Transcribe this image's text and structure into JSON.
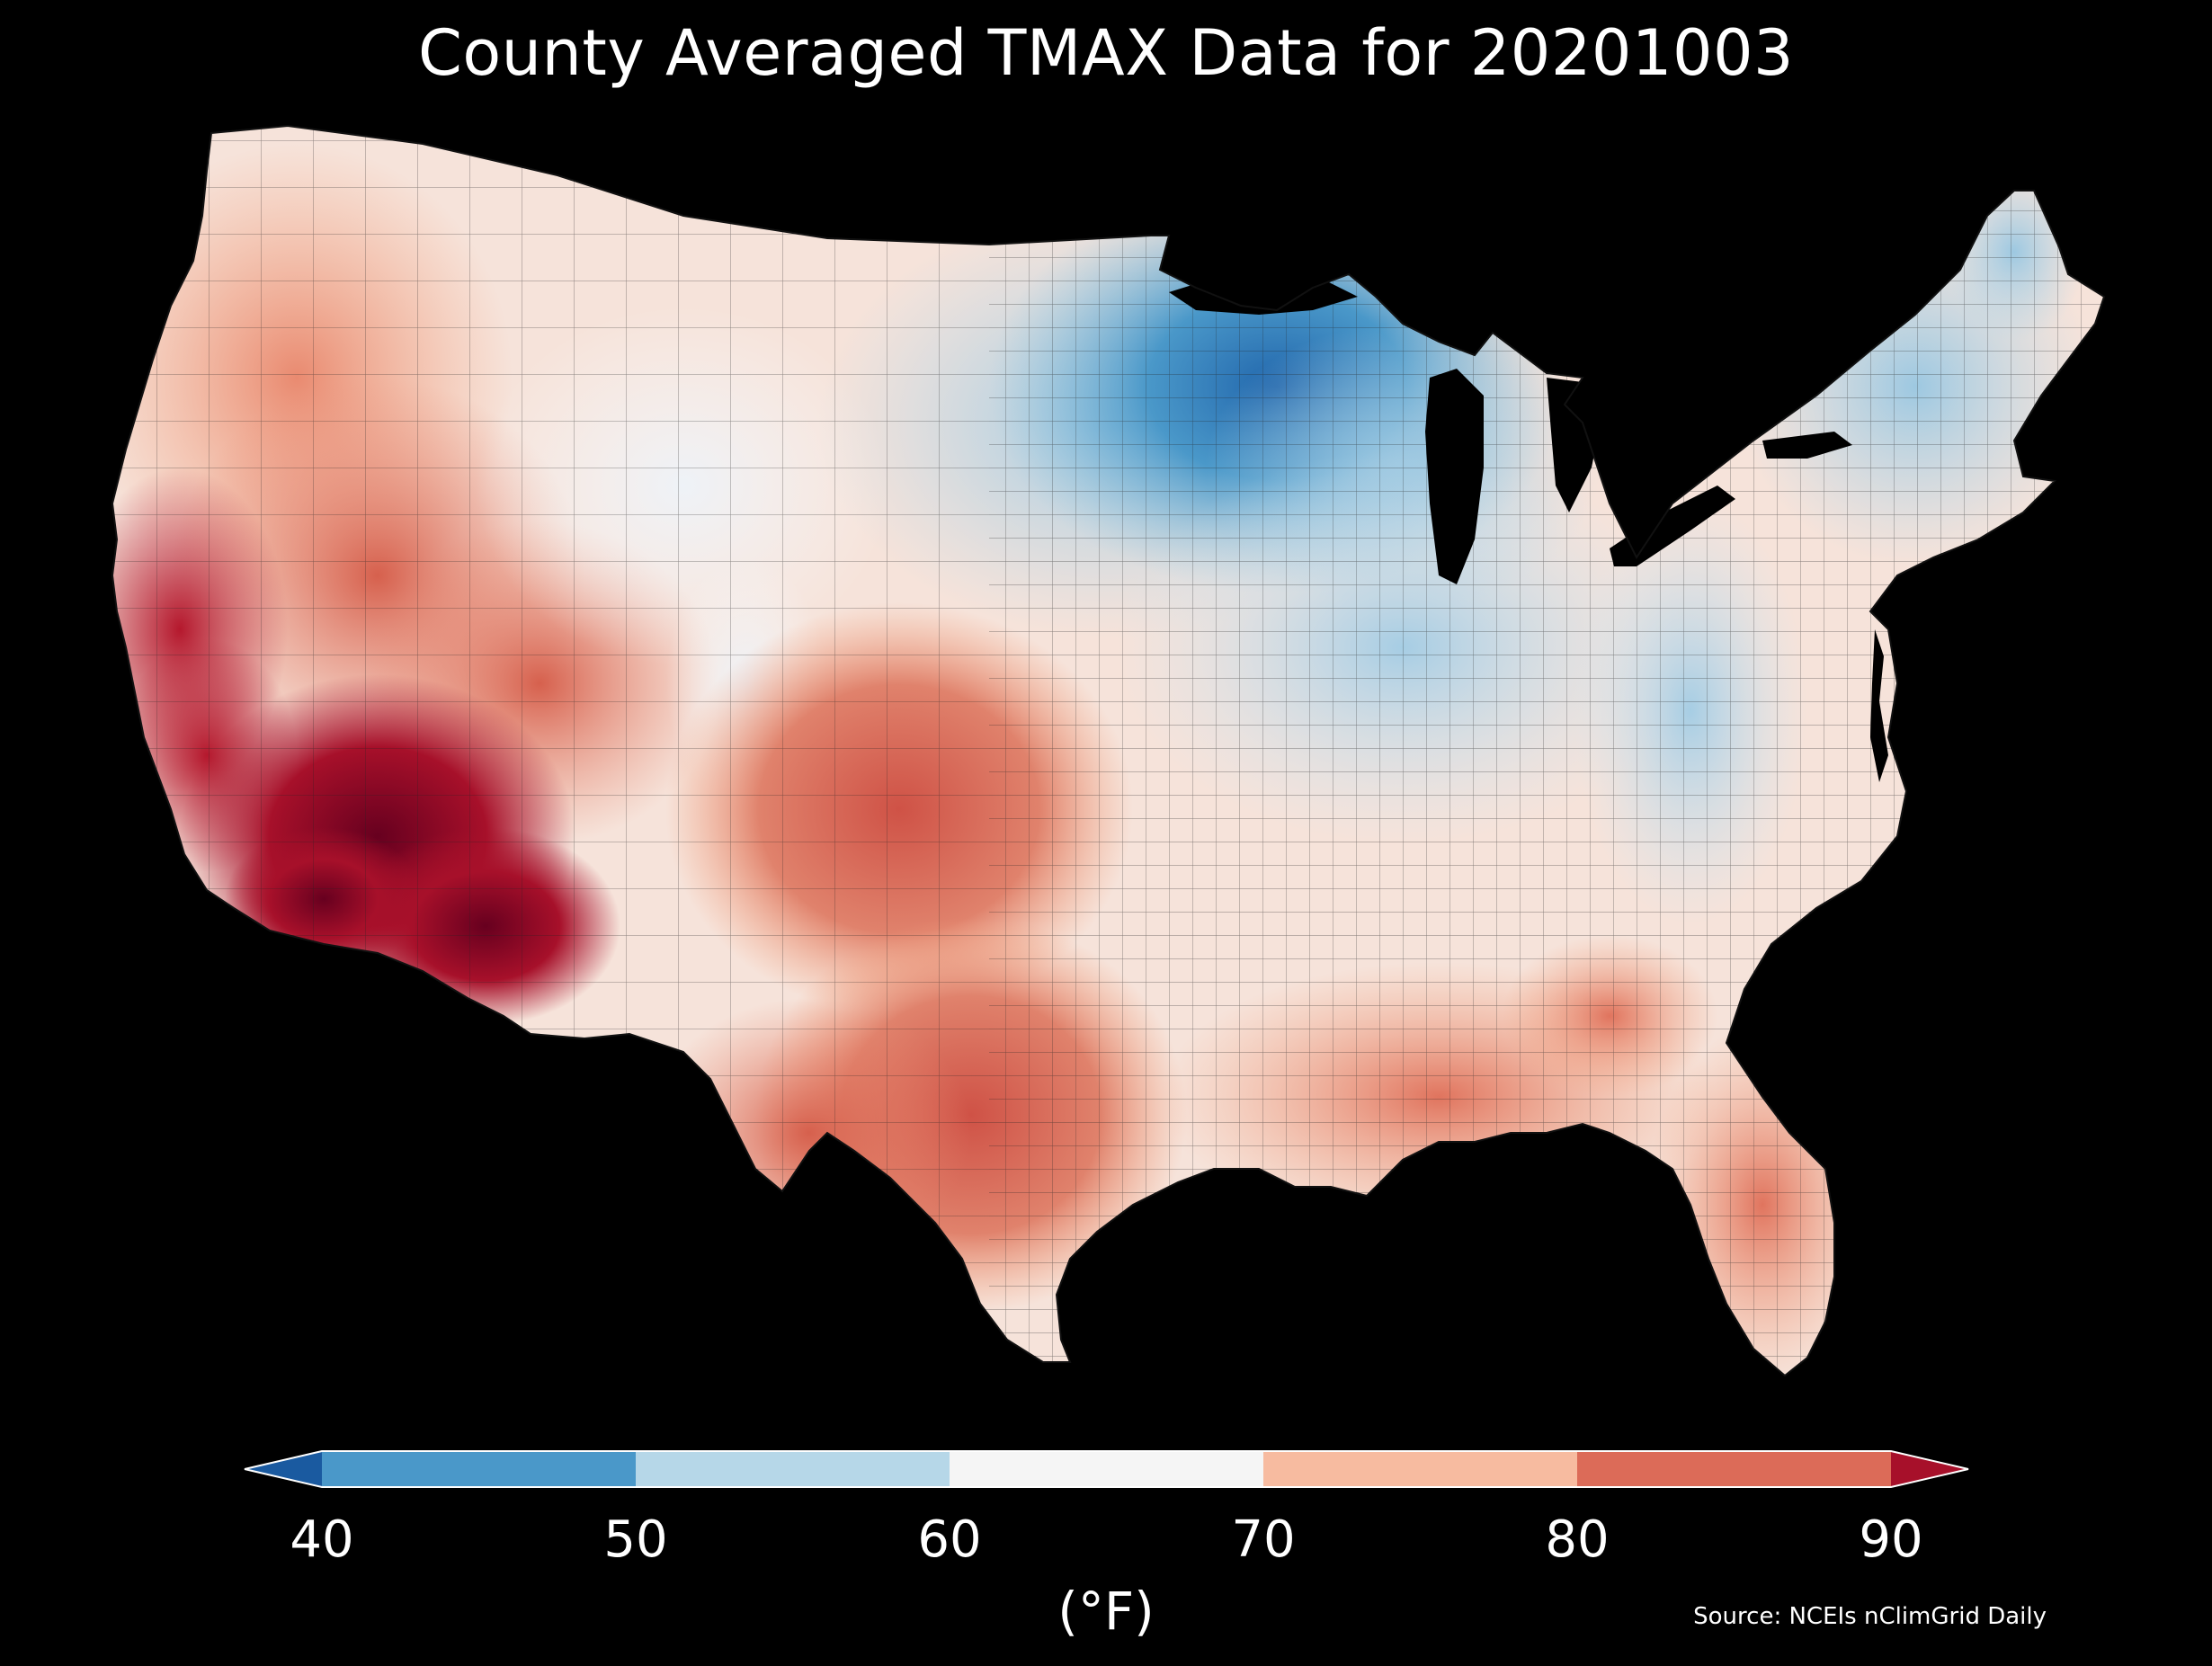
{
  "title": "County Averaged TMAX Data for 20201003",
  "colorbar": {
    "ticks": [
      "40",
      "50",
      "60",
      "70",
      "80",
      "90"
    ],
    "units": "(°F)",
    "bins": [
      {
        "range": "<40",
        "color": "#1a5aa0"
      },
      {
        "range": "40-50",
        "color": "#4a98c9"
      },
      {
        "range": "50-60",
        "color": "#b6d7e8"
      },
      {
        "range": "60-70",
        "color": "#f5f5f5"
      },
      {
        "range": "70-80",
        "color": "#f7bba0"
      },
      {
        "range": "80-90",
        "color": "#dc6b58"
      },
      {
        "range": ">90",
        "color": "#a7102a"
      }
    ]
  },
  "source": "Source: NCEIs nClimGrid Daily",
  "map": {
    "region": "Contiguous United States",
    "variable": "TMAX",
    "date": "20201003",
    "background_color": "#000000",
    "water_color": "#000000",
    "border_color": "#333333",
    "regional_temperatures_F": [
      {
        "region": "Arizona / SE California deserts",
        "value": 92
      },
      {
        "region": "Central California valleys",
        "value": 88
      },
      {
        "region": "Nevada / Utah",
        "value": 80
      },
      {
        "region": "Oregon / Washington interior",
        "value": 76
      },
      {
        "region": "Montana / Wyoming",
        "value": 68
      },
      {
        "region": "Colorado Rockies",
        "value": 62
      },
      {
        "region": "Northern Plains (Dakotas)",
        "value": 60
      },
      {
        "region": "Minnesota / Wisconsin",
        "value": 48
      },
      {
        "region": "Michigan",
        "value": 53
      },
      {
        "region": "Ohio Valley / Appalachians",
        "value": 60
      },
      {
        "region": "New England / New York",
        "value": 57
      },
      {
        "region": "Southern Plains (Texas / Oklahoma)",
        "value": 78
      },
      {
        "region": "Gulf Coast / Florida",
        "value": 77
      },
      {
        "region": "Southeast (Georgia / Carolinas)",
        "value": 72
      }
    ]
  }
}
